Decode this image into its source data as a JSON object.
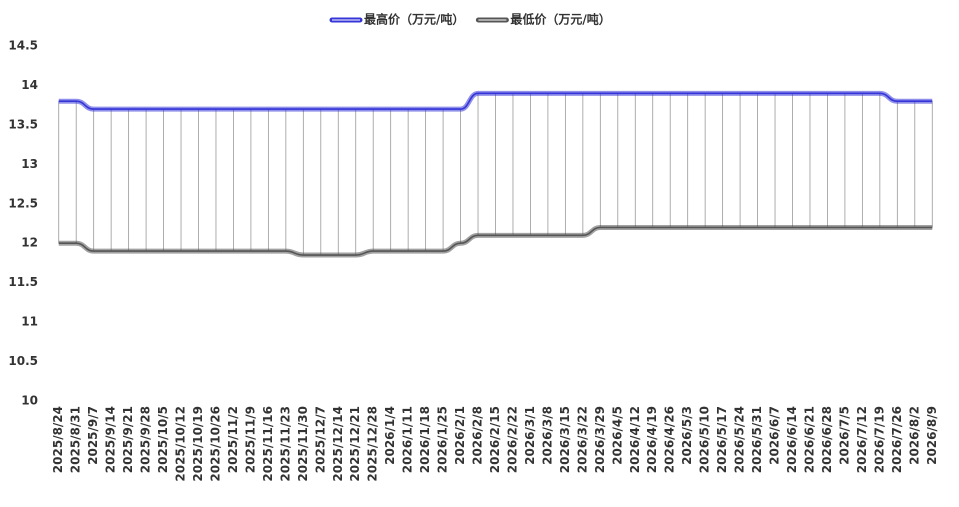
{
  "chart_data": {
    "type": "line",
    "categories": [
      "2025/8/24",
      "2025/8/31",
      "2025/9/7",
      "2025/9/14",
      "2025/9/21",
      "2025/9/28",
      "2025/10/5",
      "2025/10/12",
      "2025/10/19",
      "2025/10/26",
      "2025/11/2",
      "2025/11/9",
      "2025/11/16",
      "2025/11/23",
      "2025/11/30",
      "2025/12/7",
      "2025/12/14",
      "2025/12/21",
      "2025/12/28",
      "2026/1/4",
      "2026/1/11",
      "2026/1/18",
      "2026/1/25",
      "2026/2/1",
      "2026/2/8",
      "2026/2/15",
      "2026/2/22",
      "2026/3/1",
      "2026/3/8",
      "2026/3/15",
      "2026/3/22",
      "2026/3/29",
      "2026/4/5",
      "2026/4/12",
      "2026/4/19",
      "2026/4/26",
      "2026/5/3",
      "2026/5/10",
      "2026/5/17",
      "2026/5/24",
      "2026/5/31",
      "2026/6/7",
      "2026/6/14",
      "2026/6/21",
      "2026/6/28",
      "2026/7/5",
      "2026/7/12",
      "2026/7/19",
      "2026/7/26",
      "2026/8/2",
      "2026/8/9"
    ],
    "series": [
      {
        "name": "最高价（万元/吨）",
        "color": "#3535d8",
        "values": [
          13.8,
          13.8,
          13.7,
          13.7,
          13.7,
          13.7,
          13.7,
          13.7,
          13.7,
          13.7,
          13.7,
          13.7,
          13.7,
          13.7,
          13.7,
          13.7,
          13.7,
          13.7,
          13.7,
          13.7,
          13.7,
          13.7,
          13.7,
          13.7,
          13.9,
          13.9,
          13.9,
          13.9,
          13.9,
          13.9,
          13.9,
          13.9,
          13.9,
          13.9,
          13.9,
          13.9,
          13.9,
          13.9,
          13.9,
          13.9,
          13.9,
          13.9,
          13.9,
          13.9,
          13.9,
          13.9,
          13.9,
          13.9,
          13.8,
          13.8,
          13.8
        ]
      },
      {
        "name": "最低价（万元/吨）",
        "color": "#555555",
        "values": [
          12.0,
          12.0,
          11.9,
          11.9,
          11.9,
          11.9,
          11.9,
          11.9,
          11.9,
          11.9,
          11.9,
          11.9,
          11.9,
          11.9,
          11.85,
          11.85,
          11.85,
          11.85,
          11.9,
          11.9,
          11.9,
          11.9,
          11.9,
          12.0,
          12.1,
          12.1,
          12.1,
          12.1,
          12.1,
          12.1,
          12.1,
          12.2,
          12.2,
          12.2,
          12.2,
          12.2,
          12.2,
          12.2,
          12.2,
          12.2,
          12.2,
          12.2,
          12.2,
          12.2,
          12.2,
          12.2,
          12.2,
          12.2,
          12.2,
          12.2,
          12.2
        ]
      }
    ],
    "ylim": [
      10,
      14.5
    ],
    "yticks": [
      10,
      10.5,
      11,
      11.5,
      12,
      12.5,
      13,
      13.5,
      14,
      14.5
    ],
    "grid": false,
    "legend": "top"
  }
}
